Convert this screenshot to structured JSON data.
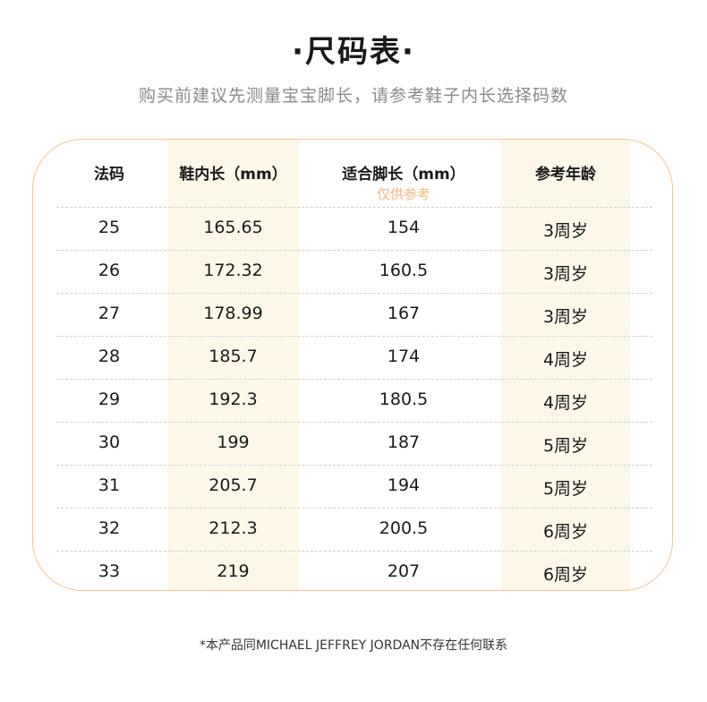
{
  "title": "·尺码表·",
  "subtitle": "购买前建议先测量宝宝脚长，请参考鞋子内长选择码数",
  "table": {
    "headers": [
      "法码",
      "鞋内长（mm）",
      "适合脚长（mm）",
      "参考年龄"
    ],
    "header_note": "仅供参考",
    "rows": [
      [
        "25",
        "165.65",
        "154",
        "3周岁"
      ],
      [
        "26",
        "172.32",
        "160.5",
        "3周岁"
      ],
      [
        "27",
        "178.99",
        "167",
        "3周岁"
      ],
      [
        "28",
        "185.7",
        "174",
        "4周岁"
      ],
      [
        "29",
        "192.3",
        "180.5",
        "4周岁"
      ],
      [
        "30",
        "199",
        "187",
        "5周岁"
      ],
      [
        "31",
        "205.7",
        "194",
        "5周岁"
      ],
      [
        "32",
        "212.3",
        "200.5",
        "6周岁"
      ],
      [
        "33",
        "219",
        "207",
        "6周岁"
      ]
    ]
  },
  "footer": "*本产品同MICHAEL JEFFREY JORDAN不存在任何联系",
  "colors": {
    "accent": "#f6c48f",
    "band": "#fdf7e8",
    "note": "#f6b77a"
  }
}
